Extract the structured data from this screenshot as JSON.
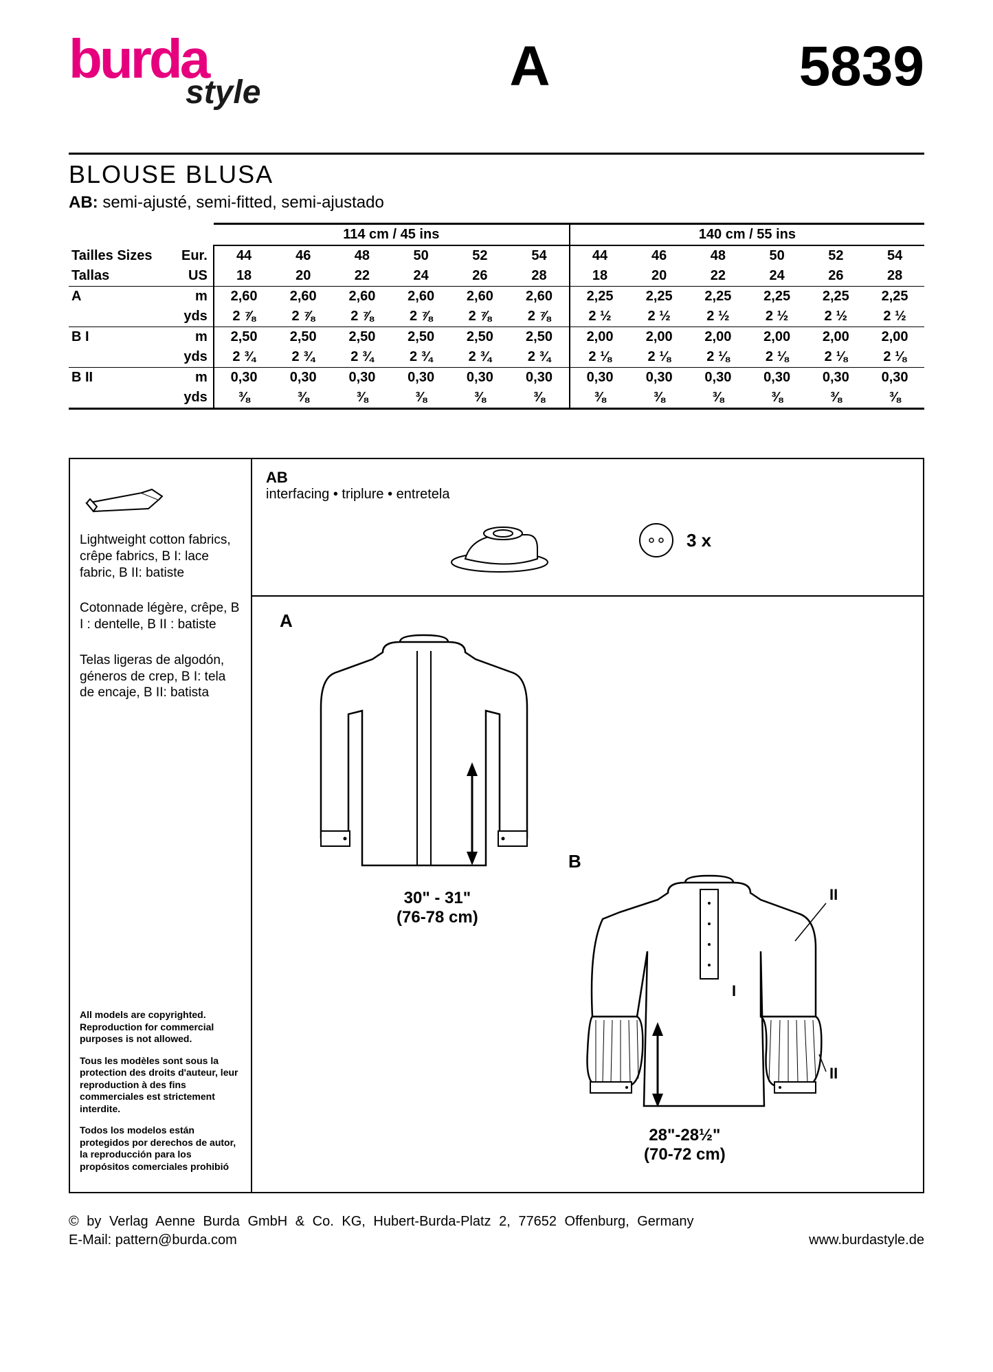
{
  "header": {
    "logo_main": "burda",
    "logo_sub": "style",
    "letter": "A",
    "pattern_number": "5839"
  },
  "title": {
    "main": "BLOUSE   BLUSA",
    "sub_prefix": "AB:",
    "sub_text": " semi-ajusté, semi-fitted, semi-ajustado"
  },
  "size_table": {
    "width1": "114 cm / 45 ins",
    "width2": "140 cm / 55 ins",
    "row_labels": {
      "sizes_l1": "Tailles   Sizes",
      "sizes_l2": "Tallas",
      "eur": "Eur.",
      "us": "US"
    },
    "eur_sizes": [
      "44",
      "46",
      "48",
      "50",
      "52",
      "54",
      "44",
      "46",
      "48",
      "50",
      "52",
      "54"
    ],
    "us_sizes": [
      "18",
      "20",
      "22",
      "24",
      "26",
      "28",
      "18",
      "20",
      "22",
      "24",
      "26",
      "28"
    ],
    "rows": [
      {
        "label": "A",
        "unit_m": "m",
        "m": [
          "2,60",
          "2,60",
          "2,60",
          "2,60",
          "2,60",
          "2,60",
          "2,25",
          "2,25",
          "2,25",
          "2,25",
          "2,25",
          "2,25"
        ],
        "unit_y": "yds",
        "y": [
          "2 ⅞",
          "2 ⅞",
          "2 ⅞",
          "2 ⅞",
          "2 ⅞",
          "2 ⅞",
          "2 ½",
          "2 ½",
          "2 ½",
          "2 ½",
          "2 ½",
          "2 ½"
        ]
      },
      {
        "label": "B I",
        "unit_m": "m",
        "m": [
          "2,50",
          "2,50",
          "2,50",
          "2,50",
          "2,50",
          "2,50",
          "2,00",
          "2,00",
          "2,00",
          "2,00",
          "2,00",
          "2,00"
        ],
        "unit_y": "yds",
        "y": [
          "2 ¾",
          "2 ¾",
          "2 ¾",
          "2 ¾",
          "2 ¾",
          "2 ¾",
          "2 ⅛",
          "2 ⅛",
          "2 ⅛",
          "2 ⅛",
          "2 ⅛",
          "2 ⅛"
        ]
      },
      {
        "label": "B II",
        "unit_m": "m",
        "m": [
          "0,30",
          "0,30",
          "0,30",
          "0,30",
          "0,30",
          "0,30",
          "0,30",
          "0,30",
          "0,30",
          "0,30",
          "0,30",
          "0,30"
        ],
        "unit_y": "yds",
        "y": [
          "⅜",
          "⅜",
          "⅜",
          "⅜",
          "⅜",
          "⅜",
          "⅜",
          "⅜",
          "⅜",
          "⅜",
          "⅜",
          "⅜"
        ]
      }
    ]
  },
  "fabric": {
    "en": "Lightweight cotton fabrics, crêpe fabrics, B I: lace fabric, B II: batiste",
    "fr": "Cotonnade légère, crêpe, B I : dentelle, B II : batiste",
    "es": "Telas ligeras de algodón, géneros de crep, B I: tela de encaje, B II: batista"
  },
  "copyright": {
    "en_l1": "All models are copyrighted.",
    "en_l2": "Reproduction for commercial purposes is not allowed.",
    "fr": "Tous les modèles sont sous la protection des droits d'auteur, leur reproduction à des fins commerciales est strictement interdite.",
    "es": "Todos los modelos están protegidos por derechos de autor, la reproducción para los propósitos comerciales prohibió"
  },
  "interfacing": {
    "label": "AB",
    "text": "interfacing • triplure • entretela",
    "button_count": "3 x"
  },
  "sketches": {
    "a_label": "A",
    "a_measure_l1": "30\" - 31\"",
    "a_measure_l2": "(76-78 cm)",
    "b_label": "B",
    "b_measure_l1": "28\"-28½\"",
    "b_measure_l2": "(70-72 cm)",
    "roman_1": "I",
    "roman_2": "II"
  },
  "footer": {
    "line1": "©   by   Verlag   Aenne   Burda   GmbH   &   Co.   KG,   Hubert-Burda-Platz   2,   77652   Offenburg,   Germany",
    "email": "E-Mail: pattern@burda.com",
    "url": "www.burdastyle.de"
  },
  "colors": {
    "brand_pink": "#e6007e",
    "text": "#000000",
    "background": "#ffffff"
  }
}
